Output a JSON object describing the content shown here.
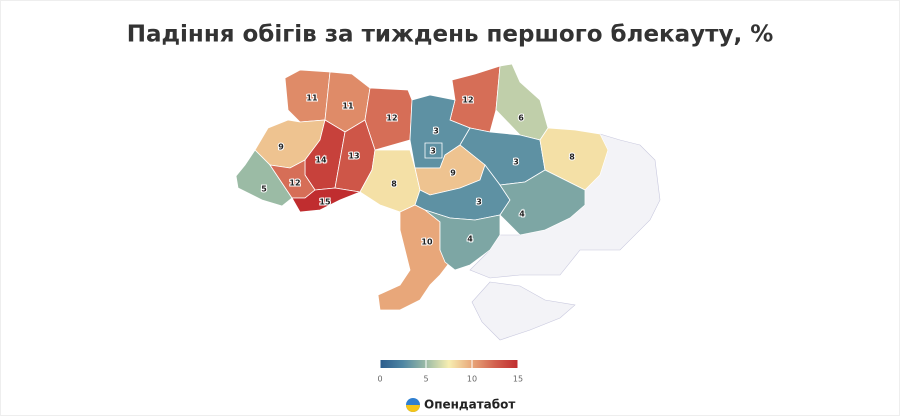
{
  "chart_data": {
    "type": "choropleth",
    "title": "Падіння обігів за тиждень першого блекауту, %",
    "values": [
      11,
      11,
      12,
      12,
      6,
      3,
      3,
      9,
      14,
      13,
      3,
      8,
      5,
      12,
      15,
      8,
      9,
      3,
      4,
      10,
      4
    ],
    "colorscale": [
      "#2a5b8c",
      "#4f86a3",
      "#9bbba5",
      "#f7eeb1",
      "#e8a77a",
      "#d2604e",
      "#c02d2f"
    ],
    "clim": [
      0,
      15
    ],
    "cticks": [
      0,
      5,
      10,
      15
    ],
    "no_data_color": "#f3f3f7",
    "source": "Опендатабот"
  }
}
